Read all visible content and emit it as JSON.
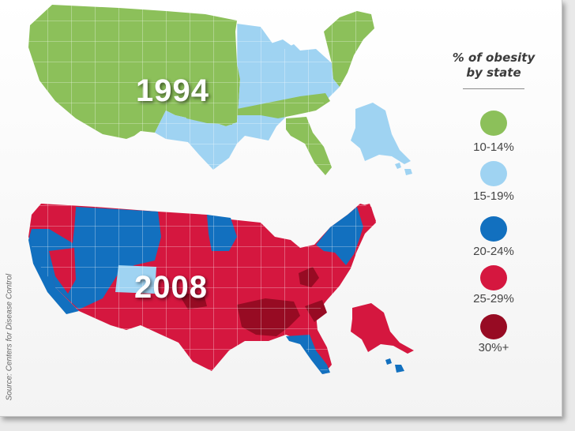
{
  "maps": [
    {
      "year": "1994"
    },
    {
      "year": "2008"
    }
  ],
  "legend": {
    "title_line1": "% of obesity",
    "title_line2": "by state",
    "items": [
      {
        "label": "10-14%",
        "color": "#8cc05a"
      },
      {
        "label": "15-19%",
        "color": "#9fd3f2"
      },
      {
        "label": "20-24%",
        "color": "#1270bf"
      },
      {
        "label": "25-29%",
        "color": "#d5173f"
      },
      {
        "label": "30%+",
        "color": "#970b23"
      }
    ]
  },
  "source": "Source: Centers for Disease Control"
}
